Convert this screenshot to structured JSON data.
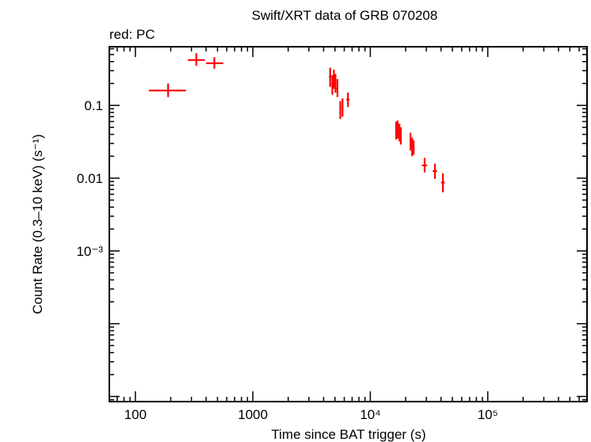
{
  "chart_data": {
    "type": "scatter",
    "title": "Swift/XRT data of GRB 070208",
    "subtitle": "red: PC",
    "xlabel": "Time since BAT trigger (s)",
    "ylabel": "Count Rate (0.3–10 keV) (s⁻¹)",
    "x_scale": "log",
    "y_scale": "log",
    "xlim": [
      60,
      700000
    ],
    "ylim": [
      8.5e-06,
      0.64
    ],
    "x_ticks": [
      {
        "value": 100,
        "label": "100"
      },
      {
        "value": 1000,
        "label": "1000"
      },
      {
        "value": 10000,
        "label": "10⁴"
      },
      {
        "value": 100000,
        "label": "10⁵"
      }
    ],
    "y_ticks": [
      {
        "value": 0.001,
        "label": "10⁻³"
      },
      {
        "value": 0.01,
        "label": "0.01"
      },
      {
        "value": 0.1,
        "label": "0.1"
      }
    ],
    "grid": false,
    "series": [
      {
        "color": "#ff0000",
        "points": [
          {
            "x": 190,
            "xlo": 130,
            "xhi": 270,
            "y": 0.16,
            "ylo": 0.13,
            "yhi": 0.2
          },
          {
            "x": 330,
            "xlo": 280,
            "xhi": 390,
            "y": 0.42,
            "ylo": 0.35,
            "yhi": 0.52
          },
          {
            "x": 470,
            "xlo": 400,
            "xhi": 560,
            "y": 0.38,
            "ylo": 0.32,
            "yhi": 0.46
          },
          {
            "x": 4550,
            "xlo": 4450,
            "xhi": 4650,
            "y": 0.25,
            "ylo": 0.18,
            "yhi": 0.33
          },
          {
            "x": 4750,
            "xlo": 4670,
            "xhi": 4830,
            "y": 0.19,
            "ylo": 0.14,
            "yhi": 0.26
          },
          {
            "x": 4900,
            "xlo": 4840,
            "xhi": 4960,
            "y": 0.23,
            "ylo": 0.17,
            "yhi": 0.31
          },
          {
            "x": 5050,
            "xlo": 4980,
            "xhi": 5120,
            "y": 0.2,
            "ylo": 0.15,
            "yhi": 0.27
          },
          {
            "x": 5250,
            "xlo": 5150,
            "xhi": 5350,
            "y": 0.17,
            "ylo": 0.13,
            "yhi": 0.23
          },
          {
            "x": 5550,
            "xlo": 5450,
            "xhi": 5650,
            "y": 0.088,
            "ylo": 0.065,
            "yhi": 0.115
          },
          {
            "x": 5800,
            "xlo": 5700,
            "xhi": 5900,
            "y": 0.095,
            "ylo": 0.07,
            "yhi": 0.125
          },
          {
            "x": 6450,
            "xlo": 6250,
            "xhi": 6650,
            "y": 0.12,
            "ylo": 0.095,
            "yhi": 0.15
          },
          {
            "x": 16600,
            "xlo": 16300,
            "xhi": 16900,
            "y": 0.045,
            "ylo": 0.034,
            "yhi": 0.06
          },
          {
            "x": 17100,
            "xlo": 16900,
            "xhi": 17300,
            "y": 0.047,
            "ylo": 0.035,
            "yhi": 0.062
          },
          {
            "x": 17700,
            "xlo": 17400,
            "xhi": 18000,
            "y": 0.042,
            "ylo": 0.032,
            "yhi": 0.056
          },
          {
            "x": 18200,
            "xlo": 18000,
            "xhi": 18400,
            "y": 0.038,
            "ylo": 0.029,
            "yhi": 0.05
          },
          {
            "x": 22000,
            "xlo": 21600,
            "xhi": 22400,
            "y": 0.032,
            "ylo": 0.024,
            "yhi": 0.042
          },
          {
            "x": 22700,
            "xlo": 22400,
            "xhi": 23000,
            "y": 0.027,
            "ylo": 0.02,
            "yhi": 0.036
          },
          {
            "x": 23400,
            "xlo": 23100,
            "xhi": 23700,
            "y": 0.026,
            "ylo": 0.021,
            "yhi": 0.033
          },
          {
            "x": 29000,
            "xlo": 27500,
            "xhi": 30500,
            "y": 0.015,
            "ylo": 0.012,
            "yhi": 0.019
          },
          {
            "x": 35500,
            "xlo": 34000,
            "xhi": 37000,
            "y": 0.0125,
            "ylo": 0.0098,
            "yhi": 0.0158
          },
          {
            "x": 41500,
            "xlo": 40000,
            "xhi": 43000,
            "y": 0.0087,
            "ylo": 0.0064,
            "yhi": 0.0117
          }
        ]
      }
    ]
  }
}
